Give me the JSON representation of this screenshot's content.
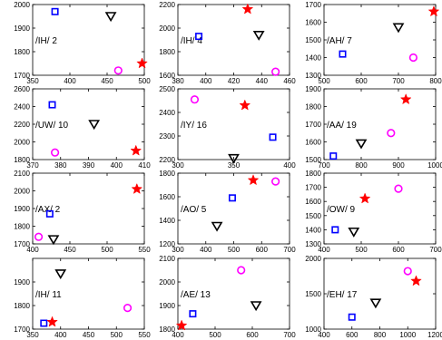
{
  "colors": {
    "square": "#0000ff",
    "triangle": "#000000",
    "circle": "#ff00ff",
    "star": "#ff0000"
  },
  "chart_data": [
    {
      "type": "scatter",
      "label": "/IH/ 2",
      "xlim": [
        350,
        500
      ],
      "ylim": [
        1700,
        2000
      ],
      "xticks": [
        350,
        400,
        450,
        500
      ],
      "yticks": [
        1700,
        1800,
        1900,
        2000
      ],
      "points": {
        "square": [
          380,
          1970
        ],
        "triangle": [
          455,
          1950
        ],
        "circle": [
          465,
          1720
        ],
        "star": [
          497,
          1750
        ]
      }
    },
    {
      "type": "scatter",
      "label": "/IH/ 4",
      "xlim": [
        380,
        460
      ],
      "ylim": [
        1600,
        2200
      ],
      "xticks": [
        380,
        400,
        420,
        440,
        460
      ],
      "yticks": [
        1600,
        1800,
        2000,
        2200
      ],
      "points": {
        "square": [
          395,
          1930
        ],
        "triangle": [
          438,
          1940
        ],
        "circle": [
          450,
          1630
        ],
        "star": [
          430,
          2160
        ]
      }
    },
    {
      "type": "scatter",
      "label": "/AH/ 7",
      "xlim": [
        500,
        800
      ],
      "ylim": [
        1300,
        1700
      ],
      "xticks": [
        500,
        600,
        700,
        800
      ],
      "yticks": [
        1300,
        1400,
        1500,
        1600,
        1700
      ],
      "points": {
        "square": [
          550,
          1420
        ],
        "triangle": [
          700,
          1570
        ],
        "circle": [
          740,
          1400
        ],
        "star": [
          795,
          1660
        ]
      }
    },
    {
      "type": "scatter",
      "label": "/UW/ 10",
      "xlim": [
        370,
        410
      ],
      "ylim": [
        1800,
        2600
      ],
      "xticks": [
        370,
        380,
        390,
        400,
        410
      ],
      "yticks": [
        1800,
        2000,
        2200,
        2400,
        2600
      ],
      "points": {
        "square": [
          377,
          2420
        ],
        "triangle": [
          392,
          2200
        ],
        "circle": [
          378,
          1880
        ],
        "star": [
          407,
          1900
        ]
      }
    },
    {
      "type": "scatter",
      "label": "/IY/ 16",
      "xlim": [
        300,
        400
      ],
      "ylim": [
        2200,
        2500
      ],
      "xticks": [
        300,
        350,
        400
      ],
      "yticks": [
        2200,
        2300,
        2400,
        2500
      ],
      "points": {
        "square": [
          385,
          2295
        ],
        "triangle": [
          350,
          2205
        ],
        "circle": [
          315,
          2455
        ],
        "star": [
          360,
          2430
        ]
      }
    },
    {
      "type": "scatter",
      "label": "/AA/ 19",
      "xlim": [
        700,
        1000
      ],
      "ylim": [
        1500,
        1900
      ],
      "xticks": [
        700,
        800,
        900,
        1000
      ],
      "yticks": [
        1500,
        1600,
        1700,
        1800,
        1900
      ],
      "points": {
        "square": [
          725,
          1520
        ],
        "triangle": [
          800,
          1590
        ],
        "circle": [
          880,
          1650
        ],
        "star": [
          920,
          1840
        ]
      }
    },
    {
      "type": "scatter",
      "label": "/AX/ 2",
      "xlim": [
        400,
        550
      ],
      "ylim": [
        1700,
        2100
      ],
      "xticks": [
        400,
        450,
        500,
        550
      ],
      "yticks": [
        1700,
        1800,
        1900,
        2000,
        2100
      ],
      "points": {
        "square": [
          423,
          1870
        ],
        "triangle": [
          428,
          1725
        ],
        "circle": [
          408,
          1740
        ],
        "star": [
          540,
          2010
        ]
      }
    },
    {
      "type": "scatter",
      "label": "/AO/ 5",
      "xlim": [
        300,
        700
      ],
      "ylim": [
        1200,
        1800
      ],
      "xticks": [
        300,
        400,
        500,
        600,
        700
      ],
      "yticks": [
        1200,
        1400,
        1600,
        1800
      ],
      "points": {
        "square": [
          495,
          1590
        ],
        "triangle": [
          440,
          1350
        ],
        "circle": [
          650,
          1730
        ],
        "star": [
          570,
          1740
        ]
      }
    },
    {
      "type": "scatter",
      "label": "/OW/ 9",
      "xlim": [
        400,
        700
      ],
      "ylim": [
        1300,
        1800
      ],
      "xticks": [
        400,
        500,
        600,
        700
      ],
      "yticks": [
        1300,
        1400,
        1500,
        1600,
        1700,
        1800
      ],
      "points": {
        "square": [
          430,
          1400
        ],
        "triangle": [
          480,
          1385
        ],
        "circle": [
          600,
          1690
        ],
        "star": [
          510,
          1620
        ]
      }
    },
    {
      "type": "scatter",
      "label": "/IH/ 11",
      "xlim": [
        350,
        550
      ],
      "ylim": [
        1700,
        2000
      ],
      "xticks": [
        350,
        400,
        450,
        500,
        550
      ],
      "yticks": [
        1700,
        1800,
        1900
      ],
      "points": {
        "square": [
          370,
          1725
        ],
        "triangle": [
          400,
          1935
        ],
        "circle": [
          520,
          1790
        ],
        "star": [
          385,
          1730
        ]
      }
    },
    {
      "type": "scatter",
      "label": "/AE/ 13",
      "xlim": [
        400,
        700
      ],
      "ylim": [
        1800,
        2100
      ],
      "xticks": [
        400,
        500,
        600,
        700
      ],
      "yticks": [
        1800,
        1900,
        2000,
        2100
      ],
      "points": {
        "square": [
          440,
          1865
        ],
        "triangle": [
          610,
          1900
        ],
        "circle": [
          570,
          2050
        ],
        "star": [
          410,
          1815
        ]
      }
    },
    {
      "type": "scatter",
      "label": "/EH/ 17",
      "xlim": [
        400,
        1200
      ],
      "ylim": [
        1000,
        2000
      ],
      "xticks": [
        400,
        600,
        800,
        1000,
        1200
      ],
      "yticks": [
        1000,
        1500,
        2000
      ],
      "points": {
        "square": [
          600,
          1170
        ],
        "triangle": [
          770,
          1370
        ],
        "circle": [
          1000,
          1820
        ],
        "star": [
          1060,
          1680
        ]
      }
    }
  ]
}
